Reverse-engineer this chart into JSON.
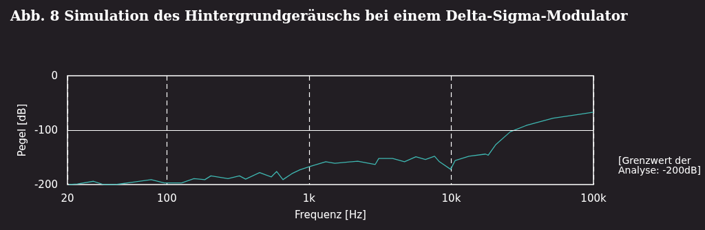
{
  "chart_data": {
    "type": "line",
    "title": "Abb. 8 Simulation des Hintergrundgeräuschs bei einem Delta-Sigma-Modulator",
    "xlabel": "Frequenz [Hz]",
    "ylabel": "Pegel [dB]",
    "annotations": [
      "[Grenzwert der Analyse: -200dB]"
    ],
    "log": "x",
    "xlim": [
      20,
      100000
    ],
    "xticks": [
      20,
      100,
      {
        "value": 1000,
        "label": "1k"
      },
      {
        "value": 10000,
        "label": "10k"
      },
      {
        "value": 100000,
        "label": "100k"
      }
    ],
    "ylim": [
      -200,
      0
    ],
    "yticks": [
      0,
      -100,
      -200
    ],
    "grid": "x",
    "ref_lines": [
      {
        "axis": "y",
        "value": -100,
        "color": "#ffffff",
        "line_style": "solid"
      }
    ],
    "marker": "none",
    "line_style": "solid",
    "series": [
      {
        "color": "#3fb8b2",
        "x": [
          20.5,
          23.5,
          30.5,
          35.9,
          43.6,
          59.7,
          77.6,
          95.8,
          127,
          155,
          185,
          204,
          269,
          324,
          358,
          449,
          542,
          592,
          655,
          757,
          861,
          1010,
          1311,
          1518,
          2200,
          2920,
          3090,
          3870,
          4690,
          5640,
          6580,
          7630,
          8250,
          9900,
          10640,
          13320,
          17400,
          18200,
          20500,
          26000,
          34000,
          52000,
          79000,
          100000
        ],
        "values": [
          -200,
          -199,
          -194,
          -200,
          -200,
          -195,
          -191,
          -197,
          -197,
          -189,
          -191,
          -184,
          -189,
          -184,
          -190,
          -178,
          -186,
          -176,
          -191,
          -180,
          -173,
          -167,
          -158,
          -161,
          -157,
          -163,
          -152,
          -152,
          -158,
          -149,
          -154,
          -148,
          -158,
          -172,
          -156,
          -148,
          -144,
          -146,
          -127,
          -103,
          -91,
          -78,
          -71,
          -67
        ]
      }
    ]
  }
}
